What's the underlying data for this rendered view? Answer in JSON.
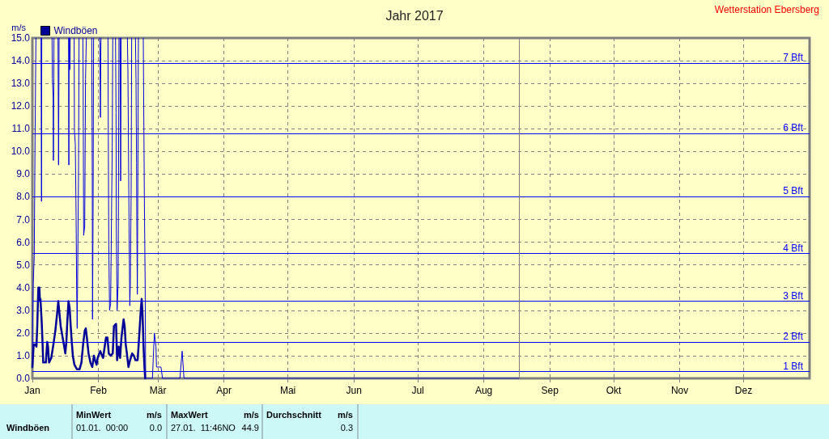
{
  "chart_data": {
    "type": "line",
    "title": "Jahr 2017",
    "ylabel": "m/s",
    "annotations": [
      "Wetterstation Ebersberg",
      "MinWert",
      "m/s",
      "MaxWert",
      "m/s",
      "Durchschnitt",
      "m/s",
      "Windböen",
      "01.01.  00:00",
      "0.0",
      "27.01.  11:46NO",
      "44.9",
      "0.3"
    ],
    "xlim": [
      "2017-01-01",
      "2018-01-01"
    ],
    "xticks": [
      {
        "value": "2017-01-01",
        "label": "Jan"
      },
      {
        "value": "2017-02-01",
        "label": "Feb"
      },
      {
        "value": "2017-03-01",
        "label": "Mär"
      },
      {
        "value": "2017-04-01",
        "label": "Apr"
      },
      {
        "value": "2017-05-01",
        "label": "Mai"
      },
      {
        "value": "2017-06-01",
        "label": "Jun"
      },
      {
        "value": "2017-07-01",
        "label": "Jul"
      },
      {
        "value": "2017-08-01",
        "label": "Aug"
      },
      {
        "value": "2017-09-01",
        "label": "Sep"
      },
      {
        "value": "2017-10-01",
        "label": "Okt"
      },
      {
        "value": "2017-11-01",
        "label": "Nov"
      },
      {
        "value": "2017-12-01",
        "label": "Dez"
      }
    ],
    "ylim": [
      0,
      15
    ],
    "yticks": [
      {
        "value": 0,
        "label": "0.0"
      },
      {
        "value": 1,
        "label": "1.0"
      },
      {
        "value": 2,
        "label": "2.0"
      },
      {
        "value": 3,
        "label": "3.0"
      },
      {
        "value": 4,
        "label": "4.0"
      },
      {
        "value": 5,
        "label": "5.0"
      },
      {
        "value": 6,
        "label": "6.0"
      },
      {
        "value": 7,
        "label": "7.0"
      },
      {
        "value": 8,
        "label": "8.0"
      },
      {
        "value": 9,
        "label": "9.0"
      },
      {
        "value": 10,
        "label": "10.0"
      },
      {
        "value": 11,
        "label": "11.0"
      },
      {
        "value": 12,
        "label": "12.0"
      },
      {
        "value": 13,
        "label": "13.0"
      },
      {
        "value": 14,
        "label": "14.0"
      },
      {
        "value": 15,
        "label": "15.0"
      }
    ],
    "grid": true,
    "legend": "top left",
    "marker": "none",
    "ref_lines": [
      {
        "axis": "y",
        "value": 0.3,
        "label": "1 Bft",
        "color": "#0000ff"
      },
      {
        "axis": "y",
        "value": 1.6,
        "label": "2 Bft",
        "color": "#0000ff"
      },
      {
        "axis": "y",
        "value": 3.4,
        "label": "3 Bft",
        "color": "#0000ff"
      },
      {
        "axis": "y",
        "value": 5.5,
        "label": "4 Bft",
        "color": "#0000ff"
      },
      {
        "axis": "y",
        "value": 8.0,
        "label": "5 Bft",
        "color": "#0000ff"
      },
      {
        "axis": "y",
        "value": 10.8,
        "label": "6 Bft",
        "color": "#0000ff"
      },
      {
        "axis": "y",
        "value": 13.9,
        "label": "7 Bft",
        "color": "#0000ff"
      },
      {
        "axis": "x",
        "value": "2017-08-17T12:00",
        "color": "#808080"
      }
    ],
    "series": [
      {
        "name": "Windböen",
        "color": "#000099",
        "x": [
          "2017-01-01T00:00",
          "2017-01-01T15:00",
          "2017-01-02T06:00",
          "2017-01-02T22:00",
          "2017-01-03T07:00",
          "2017-01-03T19:00",
          "2017-01-04T07:00",
          "2017-01-04T13:00",
          "2017-01-04T19:00",
          "2017-01-05T10:00",
          "2017-01-05T20:00",
          "2017-01-06T02:00",
          "2017-01-07T08:00",
          "2017-01-07T23:00",
          "2017-01-08T08:00",
          "2017-01-08T20:00",
          "2017-01-09T21:00",
          "2017-01-10T21:00",
          "2017-01-11T19:00",
          "2017-01-12T16:00",
          "2017-01-13T04:00",
          "2017-01-13T16:00",
          "2017-01-14T07:00",
          "2017-01-15T05:00",
          "2017-01-15T23:00",
          "2017-01-16T11:00",
          "2017-01-16T23:00",
          "2017-01-17T11:00",
          "2017-01-17T23:00",
          "2017-01-18T12:00",
          "2017-01-19T00:00",
          "2017-01-19T12:00",
          "2017-01-20T00:00",
          "2017-01-20T18:00",
          "2017-01-21T22:00",
          "2017-01-23T04:00",
          "2017-01-24T01:00",
          "2017-01-24T20:00",
          "2017-01-25T14:00",
          "2017-01-26T02:00",
          "2017-01-26T14:00",
          "2017-01-27T09:00",
          "2017-01-28T06:00",
          "2017-01-29T03:00",
          "2017-01-29T22:00",
          "2017-01-30T10:00",
          "2017-01-31T04:00",
          "2017-01-31T16:00",
          "2017-02-01T10:00",
          "2017-02-01T22:00",
          "2017-02-02T17:00",
          "2017-02-03T05:00",
          "2017-02-03T23:00",
          "2017-02-04T14:00",
          "2017-02-05T06:00",
          "2017-02-05T21:00",
          "2017-02-06T18:00",
          "2017-02-07T18:00",
          "2017-02-08T07:00",
          "2017-02-09T07:00",
          "2017-02-09T19:00",
          "2017-02-10T13:00",
          "2017-02-11T05:00",
          "2017-02-11T20:00",
          "2017-02-12T20:00",
          "2017-02-13T08:00",
          "2017-02-13T20:00",
          "2017-02-14T09:00",
          "2017-02-15T03:00",
          "2017-02-15T21:00",
          "2017-02-16T21:00",
          "2017-02-17T16:00",
          "2017-02-18T10:00",
          "2017-02-19T10:00",
          "2017-02-19T22:00",
          "2017-02-20T11:00",
          "2017-02-20T23:00",
          "2017-02-21T08:00",
          "2017-02-21T17:00",
          "2017-02-22T05:00",
          "2017-02-22T14:00",
          "2017-02-22T23:00"
        ],
        "values": [
          0.5,
          1.5,
          1.5,
          1.4,
          2.3,
          4.0,
          4.0,
          3.4,
          3.5,
          2.4,
          1.4,
          0.7,
          0.7,
          1.6,
          1.4,
          0.7,
          0.9,
          1.5,
          2.1,
          2.9,
          3.4,
          2.9,
          2.3,
          1.8,
          1.4,
          1.1,
          1.6,
          2.6,
          3.4,
          3.1,
          2.3,
          1.6,
          1.0,
          0.6,
          0.4,
          0.4,
          0.7,
          1.5,
          2.1,
          2.2,
          1.8,
          1.1,
          0.7,
          0.5,
          1.0,
          0.8,
          0.6,
          0.9,
          1.1,
          1.2,
          1.0,
          0.9,
          1.4,
          1.8,
          1.8,
          1.1,
          1.0,
          1.1,
          2.3,
          2.4,
          0.8,
          1.4,
          0.9,
          1.8,
          2.6,
          2.3,
          1.5,
          1.1,
          0.5,
          0.8,
          1.1,
          1.0,
          0.8,
          0.8,
          1.5,
          2.3,
          3.1,
          3.5,
          2.9,
          1.4,
          0.6,
          0.0
        ]
      },
      {
        "color": "#0000dd",
        "x": [
          "2017-01-01T00:00",
          "2017-01-01T03:00",
          "2017-01-01T09:00",
          "2017-01-01T21:00",
          "2017-01-02T06:00",
          "2017-01-02T16:00",
          "2017-01-03T13:00",
          "2017-01-05T01:00",
          "2017-01-05T04:00",
          "2017-01-05T07:00",
          "2017-01-05T10:00",
          "2017-01-07T08:00",
          "2017-01-10T06:00",
          "2017-01-10T09:00",
          "2017-01-10T18:00",
          "2017-01-10T21:00",
          "2017-01-11T03:00",
          "2017-01-12T01:00",
          "2017-01-13T01:00",
          "2017-01-13T04:00",
          "2017-01-13T07:00",
          "2017-01-13T13:00",
          "2017-01-15T17:00",
          "2017-01-18T00:00",
          "2017-01-18T03:00",
          "2017-01-18T06:00",
          "2017-01-18T09:00",
          "2017-01-18T12:00",
          "2017-01-18T15:00",
          "2017-01-18T18:00",
          "2017-01-19T15:00",
          "2017-01-20T15:00",
          "2017-01-20T18:00",
          "2017-01-21T04:00",
          "2017-01-21T13:00",
          "2017-01-21T19:00",
          "2017-01-22T01:00",
          "2017-01-22T07:00",
          "2017-01-22T16:00",
          "2017-01-22T22:00",
          "2017-01-23T20:00",
          "2017-01-24T17:00",
          "2017-01-24T20:00",
          "2017-01-25T02:00",
          "2017-01-25T14:00",
          "2017-01-25T23:00",
          "2017-01-26T08:00",
          "2017-01-27T15:00",
          "2017-01-28T21:00",
          "2017-01-29T03:00",
          "2017-01-29T06:00",
          "2017-01-29T12:00",
          "2017-01-29T18:00",
          "2017-01-31T01:00",
          "2017-02-01T10:00",
          "2017-02-01T16:00",
          "2017-02-01T23:00",
          "2017-02-02T05:00",
          "2017-02-03T20:00",
          "2017-02-05T12:00",
          "2017-02-05T15:00",
          "2017-02-05T21:00",
          "2017-02-06T06:00",
          "2017-02-06T18:00",
          "2017-02-07T06:00",
          "2017-02-07T12:00",
          "2017-02-07T18:00",
          "2017-02-08T10:00",
          "2017-02-09T01:00",
          "2017-02-09T07:00",
          "2017-02-09T10:00",
          "2017-02-09T19:00",
          "2017-02-10T07:00",
          "2017-02-10T16:00",
          "2017-02-10T22:00",
          "2017-02-11T05:00",
          "2017-02-11T11:00",
          "2017-02-11T17:00",
          "2017-02-13T02:00",
          "2017-02-14T15:00",
          "2017-02-14T21:00",
          "2017-02-15T09:00",
          "2017-02-15T18:00",
          "2017-02-16T00:00",
          "2017-02-16T09:00",
          "2017-02-16T15:00",
          "2017-02-17T13:00",
          "2017-02-18T10:00",
          "2017-02-18T16:00",
          "2017-02-18T22:00",
          "2017-02-19T01:00",
          "2017-02-19T07:00",
          "2017-02-19T13:00",
          "2017-02-19T19:00",
          "2017-02-20T23:00",
          "2017-02-22T02:00",
          "2017-02-22T14:00",
          "2017-02-22T23:00",
          "2017-02-23T05:00",
          "2017-02-26T09:00",
          "2017-02-27T07:00",
          "2017-02-28T01:00",
          "2017-02-28T07:00",
          "2017-03-02T08:00",
          "2017-03-02T14:00",
          "2017-03-03T02:00",
          "2017-03-11T07:00",
          "2017-03-12T08:00",
          "2017-03-13T05:00",
          "2017-08-17T12:00"
        ],
        "values": [
          0.5,
          2.2,
          4.1,
          5.4,
          10.5,
          15,
          null,
          15,
          11.6,
          7.8,
          15,
          null,
          15,
          13.2,
          12.4,
          9.6,
          15,
          null,
          15,
          12.3,
          9.4,
          15,
          null,
          15,
          9.4,
          15,
          null,
          15,
          13.6,
          15,
          null,
          15,
          10.9,
          10.3,
          7.1,
          3.9,
          2.2,
          4.9,
          9,
          15,
          null,
          15,
          13.4,
          6.3,
          6.7,
          13.2,
          15,
          null,
          15,
          9.1,
          2.6,
          7.2,
          15,
          null,
          15,
          14.8,
          11.5,
          15,
          null,
          15,
          11.9,
          5.9,
          3.0,
          3.3,
          8,
          10.2,
          15,
          null,
          15,
          11.7,
          6.7,
          3.0,
          4.2,
          15,
          null,
          15,
          8.7,
          15,
          null,
          15,
          13.5,
          7,
          3.2,
          4.2,
          8.1,
          15,
          null,
          15,
          13.2,
          9.5,
          7.0,
          3.7,
          9,
          15,
          null,
          15,
          8,
          4.2,
          0,
          0,
          2.0,
          1.4,
          0.5,
          0.5,
          0.4,
          0,
          0,
          1.2,
          0,
          0
        ]
      }
    ]
  }
}
